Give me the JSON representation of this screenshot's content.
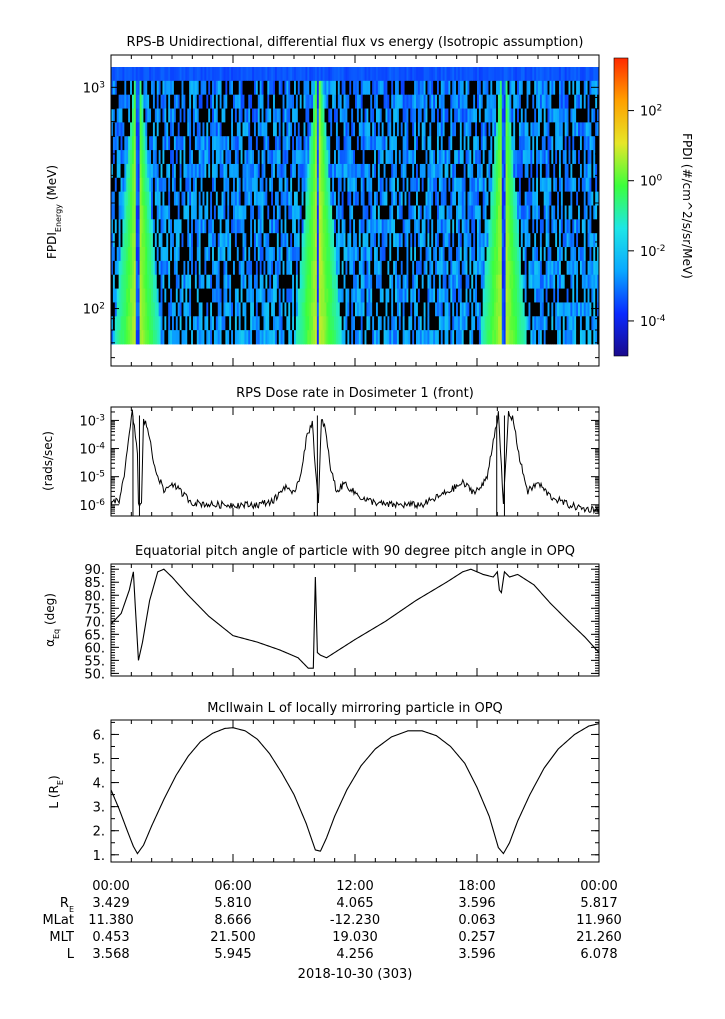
{
  "chart_data": [
    {
      "id": "spectrogram",
      "type": "heatmap",
      "title": "RPS-B  Unidirectional, differential flux vs energy (Isotropic assumption)",
      "ylabel_main": "FPDI",
      "ylabel_sub": "Energy",
      "ylabel_unit": " (MeV)",
      "yscale": "log",
      "ylim": [
        55,
        1400
      ],
      "yticks": [
        {
          "value": 100,
          "base": "10",
          "exp": "2"
        },
        {
          "value": 1000,
          "base": "10",
          "exp": "3"
        }
      ],
      "energy_rows": 20,
      "time_bins": 256,
      "colorbar": {
        "label": "FPDI (#/cm^2/s/sr/MeV)",
        "log_min": -5,
        "log_max": 3.5,
        "ticks": [
          {
            "base": "10",
            "exp": "-4",
            "log": -4
          },
          {
            "base": "10",
            "exp": "-2",
            "log": -2
          },
          {
            "base": "10",
            "exp": "0",
            "log": 0
          },
          {
            "base": "10",
            "exp": "2",
            "log": 2
          }
        ],
        "colors": [
          "#1a0a8c",
          "#0a2aff",
          "#0aa8ff",
          "#1ee6e6",
          "#3cff3c",
          "#e6e628",
          "#ffa000",
          "#ff2a00"
        ]
      },
      "belt_passes_hours": [
        1.3,
        10.2,
        19.3
      ]
    },
    {
      "id": "dose",
      "type": "line",
      "title": "RPS  Dose rate in Dosimeter 1 (front)",
      "ylabel": "(rads/sec)",
      "yscale": "log",
      "ylim": [
        4e-07,
        0.003
      ],
      "yticks": [
        {
          "value": 1e-06,
          "base": "10",
          "exp": "-6"
        },
        {
          "value": 1e-05,
          "base": "10",
          "exp": "-5"
        },
        {
          "value": 0.0001,
          "base": "10",
          "exp": "-4"
        },
        {
          "value": 0.001,
          "base": "10",
          "exp": "-3"
        }
      ],
      "x": [
        0,
        0.4,
        0.7,
        0.95,
        1.05,
        1.3,
        1.35,
        1.5,
        1.6,
        1.8,
        2.1,
        2.6,
        3.0,
        3.4,
        4.0,
        5.0,
        5.8,
        6.5,
        7.2,
        8.0,
        8.6,
        8.9,
        9.3,
        9.6,
        9.9,
        10.05,
        10.2,
        10.35,
        10.5,
        10.8,
        11.1,
        11.5,
        11.9,
        12.5,
        13.5,
        14.5,
        15.3,
        15.8,
        16.6,
        17.3,
        17.8,
        18.2,
        18.5,
        18.8,
        19.05,
        19.3,
        19.55,
        19.8,
        20.1,
        20.5,
        21.0,
        21.6,
        22.5,
        23.3,
        24.0
      ],
      "y": [
        1e-06,
        1.5e-06,
        2e-05,
        0.0006,
        0.0019,
        8e-05,
        1e-06,
        1e-06,
        0.001,
        0.0006,
        3e-05,
        3e-06,
        6e-06,
        3e-06,
        1.2e-06,
        1e-06,
        1e-06,
        1e-06,
        1e-06,
        1.4e-06,
        5e-06,
        2e-06,
        1e-05,
        0.0002,
        0.001,
        2e-05,
        1e-06,
        0.001,
        0.0007,
        2e-05,
        3e-06,
        6e-06,
        3e-06,
        1.5e-06,
        1e-06,
        1e-06,
        1e-06,
        1.5e-06,
        3e-06,
        6e-06,
        3e-06,
        4e-06,
        1e-05,
        0.0002,
        0.0017,
        1e-06,
        0.0018,
        0.001,
        4e-05,
        3e-06,
        6e-06,
        2e-06,
        1e-06,
        7e-07,
        7e-07
      ]
    },
    {
      "id": "pitch",
      "type": "line",
      "title": "Equatorial pitch angle of particle with 90 degree pitch angle in OPQ",
      "ylabel_main": "α",
      "ylabel_sub": "Eq",
      "ylabel_unit": " (deg)",
      "ylim": [
        49,
        92
      ],
      "yticks": [
        50,
        55,
        60,
        65,
        70,
        75,
        80,
        85,
        90
      ],
      "x": [
        0,
        0.5,
        0.9,
        1.1,
        1.2,
        1.35,
        1.55,
        1.9,
        2.3,
        2.6,
        3.0,
        3.8,
        4.8,
        6.0,
        7.2,
        8.3,
        9.2,
        9.7,
        9.95,
        10.05,
        10.15,
        10.3,
        10.6,
        11.0,
        12.0,
        13.5,
        15.0,
        16.5,
        17.3,
        17.7,
        18.3,
        18.8,
        19.0,
        19.1,
        19.2,
        19.35,
        19.6,
        20.0,
        20.8,
        21.6,
        22.5,
        23.3,
        24.0
      ],
      "y": [
        69,
        73,
        82,
        89,
        75,
        55,
        62,
        78,
        89,
        90,
        87,
        80,
        72,
        64.5,
        62,
        59,
        56,
        52,
        52,
        87,
        58,
        57,
        56,
        58,
        63,
        70,
        78,
        85,
        89,
        90,
        88,
        87,
        89,
        82,
        81,
        89,
        87,
        88,
        84,
        77,
        70,
        64,
        58
      ]
    },
    {
      "id": "lshell",
      "type": "line",
      "title": "McIlwain L of locally mirroring particle in OPQ",
      "ylabel_main": "L (R",
      "ylabel_sub": "E",
      "ylabel_unit": ")",
      "ylim": [
        0.7,
        6.6
      ],
      "yticks": [
        1,
        2,
        3,
        4,
        5,
        6
      ],
      "x": [
        0,
        0.4,
        0.8,
        1.1,
        1.3,
        1.6,
        2.0,
        2.6,
        3.2,
        3.8,
        4.4,
        5.0,
        5.6,
        6.0,
        6.6,
        7.2,
        7.8,
        8.4,
        9.0,
        9.6,
        10.05,
        10.3,
        10.6,
        11.0,
        11.6,
        12.3,
        13.0,
        13.8,
        14.6,
        15.3,
        16.0,
        16.7,
        17.4,
        18.0,
        18.6,
        19.05,
        19.3,
        19.6,
        20.0,
        20.6,
        21.3,
        22.0,
        22.8,
        23.5,
        24.0
      ],
      "y": [
        3.7,
        2.9,
        2.0,
        1.35,
        1.05,
        1.4,
        2.2,
        3.3,
        4.3,
        5.1,
        5.7,
        6.05,
        6.25,
        6.28,
        6.15,
        5.8,
        5.2,
        4.4,
        3.5,
        2.3,
        1.2,
        1.15,
        1.7,
        2.6,
        3.7,
        4.7,
        5.4,
        5.9,
        6.15,
        6.15,
        5.95,
        5.5,
        4.8,
        3.8,
        2.6,
        1.3,
        1.05,
        1.5,
        2.4,
        3.5,
        4.6,
        5.4,
        6.0,
        6.35,
        6.45
      ]
    }
  ],
  "time_axis": {
    "start_hours": 0,
    "end_hours": 24,
    "major_ticks": [
      0,
      6,
      12,
      18,
      24
    ],
    "minor_step_hours": 1,
    "tick_labels": [
      "00:00",
      "06:00",
      "12:00",
      "18:00",
      "00:00"
    ],
    "date_label": "2018-10-30 (303)"
  },
  "ephemeris": {
    "rows": [
      {
        "label_main": "R",
        "label_sub": "E",
        "values": [
          "3.429",
          "5.810",
          "4.065",
          "3.596",
          "5.817"
        ]
      },
      {
        "label_main": "MLat",
        "label_sub": "",
        "values": [
          "11.380",
          "8.666",
          "-12.230",
          "0.063",
          "11.960"
        ]
      },
      {
        "label_main": "MLT",
        "label_sub": "",
        "values": [
          "0.453",
          "21.500",
          "19.030",
          "0.257",
          "21.260"
        ]
      },
      {
        "label_main": "L",
        "label_sub": "",
        "values": [
          "3.568",
          "5.945",
          "4.256",
          "3.596",
          "6.078"
        ]
      }
    ]
  }
}
